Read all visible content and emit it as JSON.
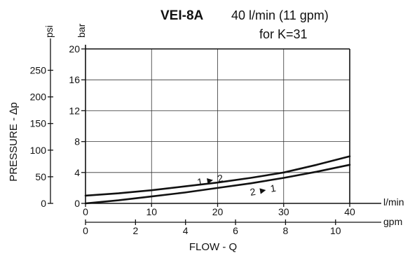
{
  "chart_data": {
    "type": "line",
    "title": "VEI-8A",
    "subtitle_line1": "40 l/min (11 gpm)",
    "subtitle_line2": "for K=31",
    "xlabel": "FLOW - Q",
    "ylabel": "PRESSURE - ∆p",
    "x_primary": {
      "unit": "l/min",
      "range": [
        0,
        40
      ],
      "ticks": [
        "0",
        "10",
        "20",
        "30",
        "40"
      ],
      "tick_values": [
        0,
        10,
        20,
        30,
        40
      ]
    },
    "x_secondary": {
      "unit": "gpm",
      "range": [
        0,
        11
      ],
      "ticks": [
        "0",
        "2",
        "4",
        "6",
        "8",
        "10"
      ],
      "tick_values": [
        0,
        2,
        4,
        6,
        8,
        10
      ]
    },
    "y_primary": {
      "unit": "bar",
      "range": [
        0,
        20
      ],
      "ticks": [
        "0",
        "4",
        "8",
        "12",
        "16",
        "20"
      ],
      "tick_values": [
        0,
        4,
        8,
        12,
        16,
        20
      ]
    },
    "y_secondary": {
      "unit": "psi",
      "ticks": [
        "0",
        "50",
        "100",
        "150",
        "200",
        "250"
      ],
      "tick_values": [
        0,
        50,
        100,
        150,
        200,
        250
      ]
    },
    "grid": true,
    "series": [
      {
        "name": "1 ► 2",
        "x": [
          0,
          5,
          10,
          15,
          20,
          25,
          30,
          35,
          40
        ],
        "y": [
          1.0,
          1.3,
          1.7,
          2.2,
          2.7,
          3.3,
          4.0,
          5.0,
          6.1
        ]
      },
      {
        "name": "2 ► 1",
        "x": [
          0,
          5,
          10,
          15,
          20,
          25,
          30,
          35,
          40
        ],
        "y": [
          0.0,
          0.4,
          0.9,
          1.4,
          2.0,
          2.6,
          3.3,
          4.1,
          5.0
        ]
      }
    ]
  }
}
